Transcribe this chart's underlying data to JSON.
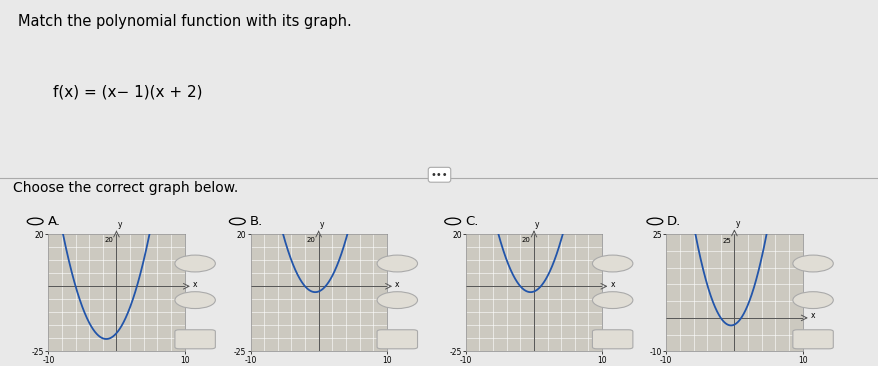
{
  "title": "Match the polynomial function with its graph.",
  "function_str": "f(x) = (x− 1)(x + 2)",
  "subtitle": "Choose the correct graph below.",
  "bg_top": "#e9e9e9",
  "bg_bottom": "#d6d3cc",
  "graph_bg": "#ccc9c0",
  "line_color": "#2255aa",
  "grid_color": "#b8b4ac",
  "axis_color": "#555555",
  "options": [
    "A.",
    "B.",
    "C.",
    "D."
  ],
  "graphs": [
    {
      "roots": [
        -6,
        3
      ],
      "xlim": [
        -10,
        10
      ],
      "ylim": [
        -25,
        20
      ],
      "ytop": 20,
      "ybot": -25
    },
    {
      "roots": [
        -2,
        1
      ],
      "xlim": [
        -10,
        10
      ],
      "ylim": [
        -25,
        20
      ],
      "ytop": 20,
      "ybot": -25
    },
    {
      "roots": [
        -2,
        1
      ],
      "xlim": [
        -10,
        10
      ],
      "ylim": [
        -25,
        20
      ],
      "ytop": 20,
      "ybot": -25,
      "cubic": true
    },
    {
      "roots": [
        -2,
        1
      ],
      "xlim": [
        -10,
        10
      ],
      "ylim": [
        -10,
        25
      ],
      "ytop": 25,
      "ybot": -10
    }
  ]
}
